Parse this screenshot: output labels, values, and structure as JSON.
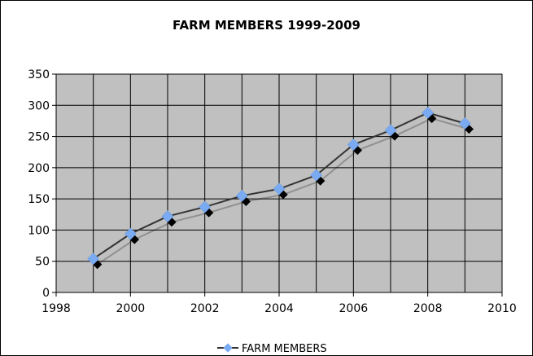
{
  "chart_data": {
    "type": "line",
    "title": "FARM MEMBERS 1999-2009",
    "xlabel": "",
    "ylabel": "",
    "xlim": [
      1998,
      2010
    ],
    "ylim": [
      0,
      350
    ],
    "x_ticks": [
      "1998",
      "2000",
      "2002",
      "2004",
      "2006",
      "2008",
      "2010"
    ],
    "y_ticks": [
      "0",
      "50",
      "100",
      "150",
      "200",
      "250",
      "300",
      "350"
    ],
    "x_tick_values": [
      1998,
      2000,
      2002,
      2004,
      2006,
      2008,
      2010
    ],
    "y_tick_values": [
      0,
      50,
      100,
      150,
      200,
      250,
      300,
      350
    ],
    "grid": true,
    "legend": "bottom",
    "series": [
      {
        "name": "FARM MEMBERS",
        "x": [
          1999,
          2000,
          2001,
          2002,
          2003,
          2004,
          2005,
          2006,
          2007,
          2008,
          2009
        ],
        "y": [
          54,
          94,
          122,
          137,
          155,
          166,
          188,
          237,
          260,
          288,
          271
        ]
      }
    ],
    "colors": {
      "plot_background": "#c0c0c0",
      "gridline": "#000000",
      "line": "#333333",
      "marker": "#7aaaf2",
      "shadow": "#000000"
    }
  }
}
